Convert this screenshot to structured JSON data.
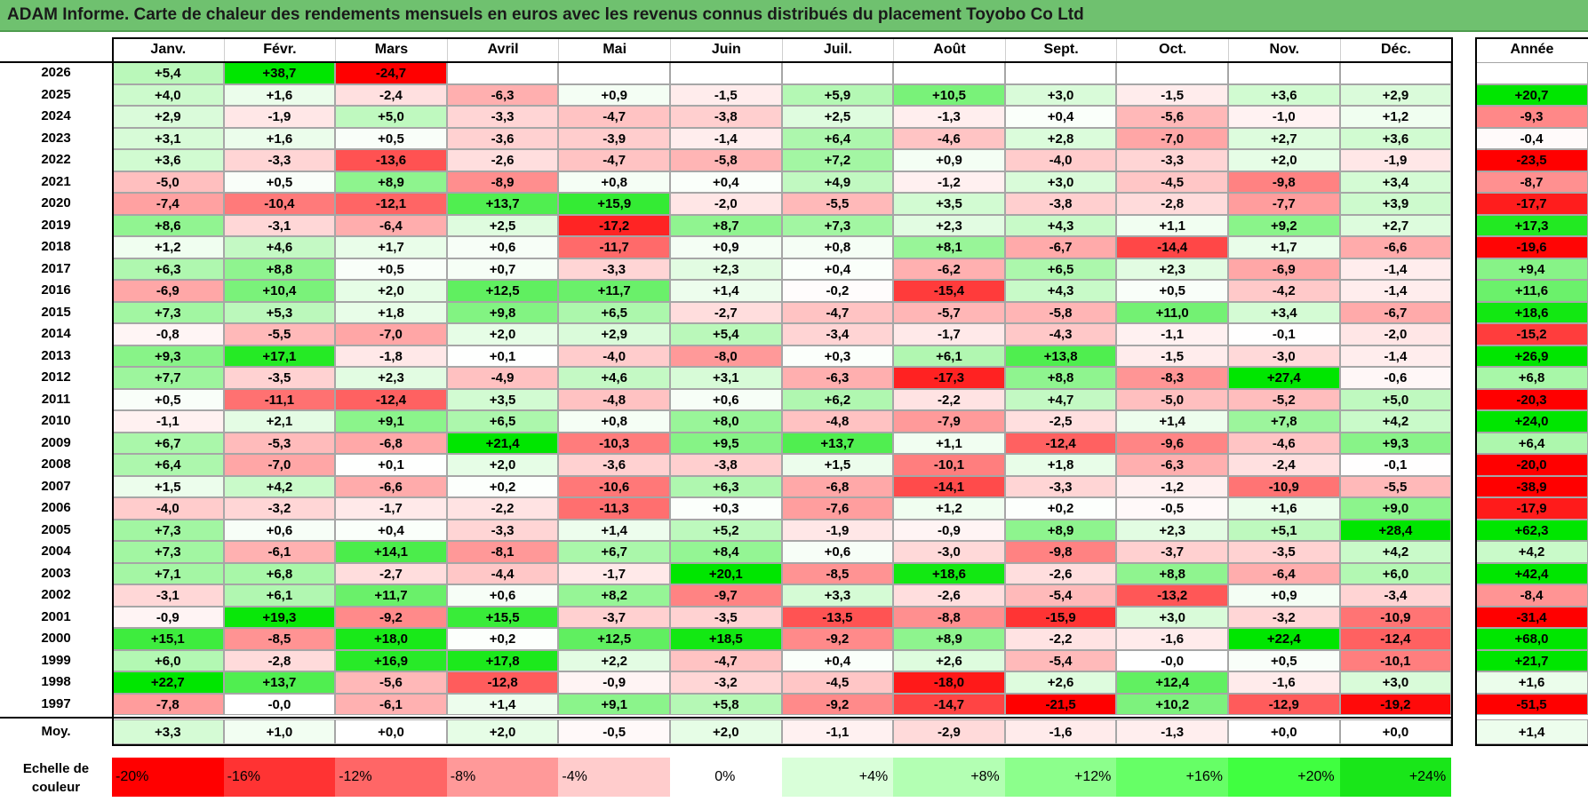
{
  "title": "ADAM Informe. Carte de chaleur des rendements mensuels en euros avec les revenus connus distribués du placement Toyobo Co Ltd",
  "chart_data": {
    "type": "heatmap",
    "columns": [
      "Janv.",
      "Févr.",
      "Mars",
      "Avril",
      "Mai",
      "Juin",
      "Juil.",
      "Août",
      "Sept.",
      "Oct.",
      "Nov.",
      "Déc."
    ],
    "year_column": "Année",
    "rows": [
      {
        "year": "2026",
        "months": [
          "+5,4",
          "+38,7",
          "-24,7",
          "",
          "",
          "",
          "",
          "",
          "",
          "",
          "",
          ""
        ],
        "annual": ""
      },
      {
        "year": "2025",
        "months": [
          "+4,0",
          "+1,6",
          "-2,4",
          "-6,3",
          "+0,9",
          "-1,5",
          "+5,9",
          "+10,5",
          "+3,0",
          "-1,5",
          "+3,6",
          "+2,9"
        ],
        "annual": "+20,7"
      },
      {
        "year": "2024",
        "months": [
          "+2,9",
          "-1,9",
          "+5,0",
          "-3,3",
          "-4,7",
          "-3,8",
          "+2,5",
          "-1,3",
          "+0,4",
          "-5,6",
          "-1,0",
          "+1,2"
        ],
        "annual": "-9,3"
      },
      {
        "year": "2023",
        "months": [
          "+3,1",
          "+1,6",
          "+0,5",
          "-3,6",
          "-3,9",
          "-1,4",
          "+6,4",
          "-4,6",
          "+2,8",
          "-7,0",
          "+2,7",
          "+3,6"
        ],
        "annual": "-0,4"
      },
      {
        "year": "2022",
        "months": [
          "+3,6",
          "-3,3",
          "-13,6",
          "-2,6",
          "-4,7",
          "-5,8",
          "+7,2",
          "+0,9",
          "-4,0",
          "-3,3",
          "+2,0",
          "-1,9"
        ],
        "annual": "-23,5"
      },
      {
        "year": "2021",
        "months": [
          "-5,0",
          "+0,5",
          "+8,9",
          "-8,9",
          "+0,8",
          "+0,4",
          "+4,9",
          "-1,2",
          "+3,0",
          "-4,5",
          "-9,8",
          "+3,4"
        ],
        "annual": "-8,7"
      },
      {
        "year": "2020",
        "months": [
          "-7,4",
          "-10,4",
          "-12,1",
          "+13,7",
          "+15,9",
          "-2,0",
          "-5,5",
          "+3,5",
          "-3,8",
          "-2,8",
          "-7,7",
          "+3,9"
        ],
        "annual": "-17,7"
      },
      {
        "year": "2019",
        "months": [
          "+8,6",
          "-3,1",
          "-6,4",
          "+2,5",
          "-17,2",
          "+8,7",
          "+7,3",
          "+2,3",
          "+4,3",
          "+1,1",
          "+9,2",
          "+2,7"
        ],
        "annual": "+17,3"
      },
      {
        "year": "2018",
        "months": [
          "+1,2",
          "+4,6",
          "+1,7",
          "+0,6",
          "-11,7",
          "+0,9",
          "+0,8",
          "+8,1",
          "-6,7",
          "-14,4",
          "+1,7",
          "-6,6"
        ],
        "annual": "-19,6"
      },
      {
        "year": "2017",
        "months": [
          "+6,3",
          "+8,8",
          "+0,5",
          "+0,7",
          "-3,3",
          "+2,3",
          "+0,4",
          "-6,2",
          "+6,5",
          "+2,3",
          "-6,9",
          "-1,4"
        ],
        "annual": "+9,4"
      },
      {
        "year": "2016",
        "months": [
          "-6,9",
          "+10,4",
          "+2,0",
          "+12,5",
          "+11,7",
          "+1,4",
          "-0,2",
          "-15,4",
          "+4,3",
          "+0,5",
          "-4,2",
          "-1,4"
        ],
        "annual": "+11,6"
      },
      {
        "year": "2015",
        "months": [
          "+7,3",
          "+5,3",
          "+1,8",
          "+9,8",
          "+6,5",
          "-2,7",
          "-4,7",
          "-5,7",
          "-5,8",
          "+11,0",
          "+3,4",
          "-6,7"
        ],
        "annual": "+18,6"
      },
      {
        "year": "2014",
        "months": [
          "-0,8",
          "-5,5",
          "-7,0",
          "+2,0",
          "+2,9",
          "+5,4",
          "-3,4",
          "-1,7",
          "-4,3",
          "-1,1",
          "-0,1",
          "-2,0"
        ],
        "annual": "-15,2"
      },
      {
        "year": "2013",
        "months": [
          "+9,3",
          "+17,1",
          "-1,8",
          "+0,1",
          "-4,0",
          "-8,0",
          "+0,3",
          "+6,1",
          "+13,8",
          "-1,5",
          "-3,0",
          "-1,4"
        ],
        "annual": "+26,9"
      },
      {
        "year": "2012",
        "months": [
          "+7,7",
          "-3,5",
          "+2,3",
          "-4,9",
          "+4,6",
          "+3,1",
          "-6,3",
          "-17,3",
          "+8,8",
          "-8,3",
          "+27,4",
          "-0,6"
        ],
        "annual": "+6,8"
      },
      {
        "year": "2011",
        "months": [
          "+0,5",
          "-11,1",
          "-12,4",
          "+3,5",
          "-4,8",
          "+0,6",
          "+6,2",
          "-2,2",
          "+4,7",
          "-5,0",
          "-5,2",
          "+5,0"
        ],
        "annual": "-20,3"
      },
      {
        "year": "2010",
        "months": [
          "-1,1",
          "+2,1",
          "+9,1",
          "+6,5",
          "+0,8",
          "+8,0",
          "-4,8",
          "-7,9",
          "-2,5",
          "+1,4",
          "+7,8",
          "+4,2"
        ],
        "annual": "+24,0"
      },
      {
        "year": "2009",
        "months": [
          "+6,7",
          "-5,3",
          "-6,8",
          "+21,4",
          "-10,3",
          "+9,5",
          "+13,7",
          "+1,1",
          "-12,4",
          "-9,6",
          "-4,6",
          "+9,3"
        ],
        "annual": "+6,4"
      },
      {
        "year": "2008",
        "months": [
          "+6,4",
          "-7,0",
          "+0,1",
          "+2,0",
          "-3,6",
          "-3,8",
          "+1,5",
          "-10,1",
          "+1,8",
          "-6,3",
          "-2,4",
          "-0,1"
        ],
        "annual": "-20,0"
      },
      {
        "year": "2007",
        "months": [
          "+1,5",
          "+4,2",
          "-6,6",
          "+0,2",
          "-10,6",
          "+6,3",
          "-6,8",
          "-14,1",
          "-3,3",
          "-1,2",
          "-10,9",
          "-5,5"
        ],
        "annual": "-38,9"
      },
      {
        "year": "2006",
        "months": [
          "-4,0",
          "-3,2",
          "-1,7",
          "-2,2",
          "-11,3",
          "+0,3",
          "-7,6",
          "+1,2",
          "+0,2",
          "-0,5",
          "+1,6",
          "+9,0"
        ],
        "annual": "-17,9"
      },
      {
        "year": "2005",
        "months": [
          "+7,3",
          "+0,6",
          "+0,4",
          "-3,3",
          "+1,4",
          "+5,2",
          "-1,9",
          "-0,9",
          "+8,9",
          "+2,3",
          "+5,1",
          "+28,4"
        ],
        "annual": "+62,3"
      },
      {
        "year": "2004",
        "months": [
          "+7,3",
          "-6,1",
          "+14,1",
          "-8,1",
          "+6,7",
          "+8,4",
          "+0,6",
          "-3,0",
          "-9,8",
          "-3,7",
          "-3,5",
          "+4,2"
        ],
        "annual": "+4,2"
      },
      {
        "year": "2003",
        "months": [
          "+7,1",
          "+6,8",
          "-2,7",
          "-4,4",
          "-1,7",
          "+20,1",
          "-8,5",
          "+18,6",
          "-2,6",
          "+8,8",
          "-6,4",
          "+6,0"
        ],
        "annual": "+42,4"
      },
      {
        "year": "2002",
        "months": [
          "-3,1",
          "+6,1",
          "+11,7",
          "+0,6",
          "+8,2",
          "-9,7",
          "+3,3",
          "-2,6",
          "-5,4",
          "-13,2",
          "+0,9",
          "-3,4"
        ],
        "annual": "-8,4"
      },
      {
        "year": "2001",
        "months": [
          "-0,9",
          "+19,3",
          "-9,2",
          "+15,5",
          "-3,7",
          "-3,5",
          "-13,5",
          "-8,8",
          "-15,9",
          "+3,0",
          "-3,2",
          "-10,9"
        ],
        "annual": "-31,4"
      },
      {
        "year": "2000",
        "months": [
          "+15,1",
          "-8,5",
          "+18,0",
          "+0,2",
          "+12,5",
          "+18,5",
          "-9,2",
          "+8,9",
          "-2,2",
          "-1,6",
          "+22,4",
          "-12,4"
        ],
        "annual": "+68,0"
      },
      {
        "year": "1999",
        "months": [
          "+6,0",
          "-2,8",
          "+16,9",
          "+17,8",
          "+2,2",
          "-4,7",
          "+0,4",
          "+2,6",
          "-5,4",
          "-0,0",
          "+0,5",
          "-10,1"
        ],
        "annual": "+21,7"
      },
      {
        "year": "1998",
        "months": [
          "+22,7",
          "+13,7",
          "-5,6",
          "-12,8",
          "-0,9",
          "-3,2",
          "-4,5",
          "-18,0",
          "+2,6",
          "+12,4",
          "-1,6",
          "+3,0"
        ],
        "annual": "+1,6"
      },
      {
        "year": "1997",
        "months": [
          "-7,8",
          "-0,0",
          "-6,1",
          "+1,4",
          "+9,1",
          "+5,8",
          "-9,2",
          "-14,7",
          "-21,5",
          "+10,2",
          "-12,9",
          "-19,2"
        ],
        "annual": "-51,5"
      }
    ],
    "average_label": "Moy.",
    "average": [
      "+3,3",
      "+1,0",
      "+0,0",
      "+2,0",
      "-0,5",
      "+2,0",
      "-1,1",
      "-2,9",
      "-1,6",
      "-1,3",
      "+0,0",
      "+0,0"
    ],
    "average_annual": "+1,4",
    "scale_label": "Echelle de couleur",
    "scale": [
      {
        "label": "-20%",
        "value": -20,
        "color": "#ff0000"
      },
      {
        "label": "-16%",
        "value": -16,
        "color": "#ff3333"
      },
      {
        "label": "-12%",
        "value": -12,
        "color": "#ff6666"
      },
      {
        "label": "-8%",
        "value": -8,
        "color": "#ff9999"
      },
      {
        "label": "-4%",
        "value": -4,
        "color": "#ffcccc"
      },
      {
        "label": "0%",
        "value": 0,
        "color": "#ffffff"
      },
      {
        "label": "+4%",
        "value": 4,
        "color": "#d9ffd9"
      },
      {
        "label": "+8%",
        "value": 8,
        "color": "#b3ffb3"
      },
      {
        "label": "+12%",
        "value": 12,
        "color": "#8cff8c"
      },
      {
        "label": "+16%",
        "value": 16,
        "color": "#66ff66"
      },
      {
        "label": "+20%",
        "value": 20,
        "color": "#40ff40"
      },
      {
        "label": "+24%",
        "value": 24,
        "color": "#19e619"
      }
    ],
    "colors": {
      "negative_max": "#ff0000",
      "positive_max": "#00e600",
      "neutral": "#ffffff",
      "title_bar": "#6fc16f"
    }
  }
}
